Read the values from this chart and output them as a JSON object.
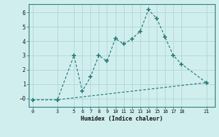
{
  "xlabel": "Humidex (Indice chaleur)",
  "background_color": "#d1eeee",
  "line_color": "#2a7a7a",
  "grid_color": "#b0d8d8",
  "xticks": [
    0,
    3,
    5,
    6,
    7,
    8,
    9,
    10,
    11,
    12,
    13,
    14,
    15,
    16,
    17,
    18,
    21
  ],
  "yticks": [
    0,
    1,
    2,
    3,
    4,
    5,
    6
  ],
  "ylim": [
    -0.6,
    6.6
  ],
  "xlim": [
    -0.5,
    22.0
  ],
  "series1_x": [
    0,
    3,
    5,
    6,
    7,
    8,
    9,
    10,
    11,
    12,
    13,
    14,
    15,
    16,
    17,
    18,
    21
  ],
  "series1_y": [
    -0.1,
    -0.1,
    3.0,
    0.5,
    1.5,
    3.0,
    2.6,
    4.2,
    3.8,
    4.15,
    4.7,
    6.2,
    5.6,
    4.3,
    3.0,
    2.4,
    1.1
  ],
  "series2_x": [
    0,
    3,
    21
  ],
  "series2_y": [
    -0.1,
    -0.1,
    1.1
  ],
  "font_family": "monospace"
}
